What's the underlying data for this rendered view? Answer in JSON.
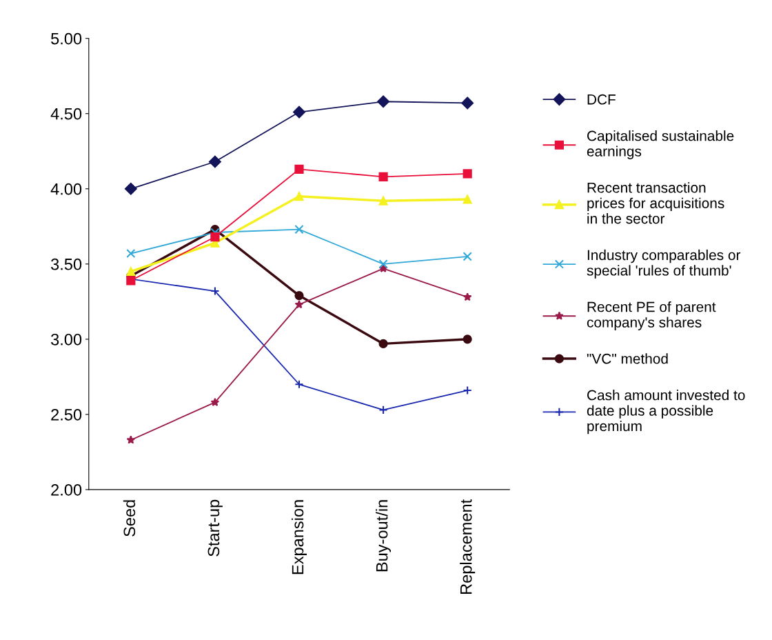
{
  "chart_data": {
    "type": "line",
    "categories": [
      "Seed",
      "Start-up",
      "Expansion",
      "Buy-out/in",
      "Replacement"
    ],
    "ylim": [
      2.0,
      5.0
    ],
    "yticks": [
      {
        "value": 2.0,
        "label": "2.00"
      },
      {
        "value": 2.5,
        "label": "2.50"
      },
      {
        "value": 3.0,
        "label": "3.00"
      },
      {
        "value": 3.5,
        "label": "3.50"
      },
      {
        "value": 4.0,
        "label": "4.00"
      },
      {
        "value": 4.5,
        "label": "4.50"
      },
      {
        "value": 5.0,
        "label": "5.00"
      }
    ],
    "grid": false,
    "legend": "right",
    "series": [
      {
        "name": "DCF",
        "color": "#14145a",
        "marker": "diamond",
        "values": [
          4.0,
          4.18,
          4.51,
          4.58,
          4.57
        ]
      },
      {
        "name": "Capitalised sustainable earnings",
        "color": "#e8103a",
        "marker": "square",
        "values": [
          3.39,
          3.68,
          4.13,
          4.08,
          4.1
        ]
      },
      {
        "name": "Recent transaction prices for acquisitions in the sector",
        "color": "#f5f020",
        "marker": "triangle",
        "values": [
          3.45,
          3.64,
          3.95,
          3.92,
          3.93
        ]
      },
      {
        "name": "Industry comparables or special 'rules of thumb'",
        "color": "#30a8d8",
        "marker": "cross",
        "values": [
          3.57,
          3.71,
          3.73,
          3.5,
          3.55
        ]
      },
      {
        "name": "Recent PE of parent company's shares",
        "color": "#9a1a4a",
        "marker": "star",
        "values": [
          2.33,
          2.58,
          3.23,
          3.47,
          3.28
        ]
      },
      {
        "name": "\"VC\" method",
        "color": "#3a0a10",
        "marker": "circle",
        "values": [
          3.42,
          3.73,
          3.29,
          2.97,
          3.0
        ]
      },
      {
        "name": "Cash amount invested to date plus a possible premium",
        "color": "#1a28b0",
        "marker": "cross",
        "values": [
          3.4,
          3.32,
          2.7,
          2.53,
          2.66
        ]
      }
    ]
  }
}
